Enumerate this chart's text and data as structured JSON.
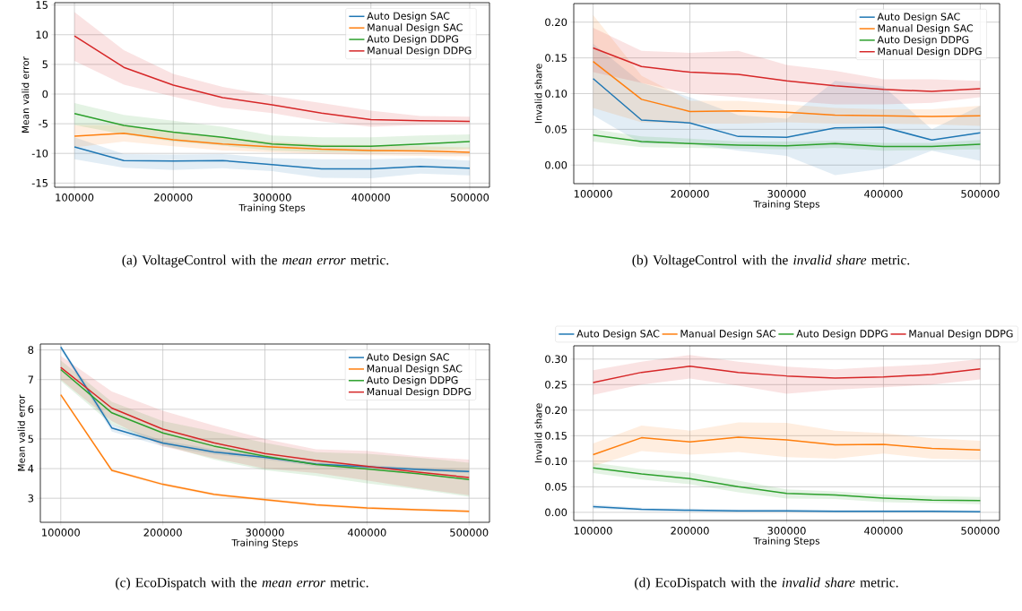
{
  "chart_data": [
    {
      "type": "line",
      "x": [
        100000,
        150000,
        200000,
        250000,
        300000,
        350000,
        400000,
        450000,
        500000
      ],
      "xlabel": "Training Steps",
      "ylabel": "Mean valid error",
      "xlim": [
        80000,
        520000
      ],
      "ylim": [
        -15.7,
        15.4
      ],
      "xticks": [
        100000,
        200000,
        300000,
        400000,
        500000
      ],
      "yticks": [
        -15,
        -10,
        -5,
        0,
        5,
        10,
        15
      ],
      "grid": true,
      "legend": "top right",
      "annotations": [
        "(a) VoltageControl with the *mean error* metric."
      ],
      "series": [
        {
          "name": "Auto Design SAC",
          "color": "#1f77b4",
          "values": [
            -8.9,
            -11.2,
            -11.3,
            -11.2,
            -11.9,
            -12.6,
            -12.6,
            -12.2,
            -12.5
          ],
          "upper": [
            -7.3,
            -10.1,
            -10.2,
            -10.1,
            -10.8,
            -11.0,
            -11.0,
            -10.8,
            -11.2
          ],
          "lower": [
            -11.0,
            -12.4,
            -12.8,
            -12.5,
            -13.0,
            -14.1,
            -14.2,
            -13.4,
            -13.7
          ]
        },
        {
          "name": "Manual Design SAC",
          "color": "#ff7f0e",
          "values": [
            -7.1,
            -6.6,
            -7.7,
            -8.4,
            -8.9,
            -9.3,
            -9.5,
            -9.6,
            -9.8
          ],
          "upper": [
            -5.2,
            -5.2,
            -6.5,
            -7.3,
            -8.0,
            -8.5,
            -8.6,
            -8.8,
            -9.0
          ],
          "lower": [
            -9.0,
            -8.0,
            -8.8,
            -9.5,
            -9.8,
            -10.1,
            -10.3,
            -10.4,
            -10.5
          ]
        },
        {
          "name": "Auto Design DDPG",
          "color": "#2ca02c",
          "values": [
            -3.3,
            -5.3,
            -6.4,
            -7.3,
            -8.4,
            -8.8,
            -8.8,
            -8.4,
            -8.0
          ],
          "upper": [
            -1.5,
            -3.5,
            -4.5,
            -5.5,
            -7.0,
            -7.3,
            -7.3,
            -7.0,
            -6.8
          ],
          "lower": [
            -5.2,
            -6.8,
            -8.0,
            -8.7,
            -9.5,
            -9.8,
            -9.8,
            -9.6,
            -9.2
          ]
        },
        {
          "name": "Manual Design DDPG",
          "color": "#d62728",
          "values": [
            9.8,
            4.5,
            1.5,
            -0.6,
            -1.8,
            -3.2,
            -4.3,
            -4.5,
            -4.6
          ],
          "upper": [
            13.8,
            7.4,
            3.4,
            1.2,
            -0.3,
            -1.5,
            -2.8,
            -3.7,
            -3.8
          ],
          "lower": [
            5.6,
            1.6,
            -0.4,
            -2.3,
            -3.2,
            -4.6,
            -5.5,
            -5.2,
            -5.1
          ]
        }
      ]
    },
    {
      "type": "line",
      "x": [
        100000,
        150000,
        200000,
        250000,
        300000,
        350000,
        400000,
        450000,
        500000
      ],
      "xlabel": "Training Steps",
      "ylabel": "Invalid share",
      "xlim": [
        80000,
        520000
      ],
      "ylim": [
        -0.026,
        0.226
      ],
      "xticks": [
        100000,
        200000,
        300000,
        400000,
        500000
      ],
      "yticks": [
        {
          "value": 0,
          "label": "0.00"
        },
        {
          "value": 0.05,
          "label": "0.05"
        },
        {
          "value": 0.1,
          "label": "0.10"
        },
        {
          "value": 0.15,
          "label": "0.15"
        },
        {
          "value": 0.2,
          "label": "0.20"
        }
      ],
      "grid": true,
      "legend": "top right",
      "annotations": [
        "(b) VoltageControl with the *invalid share* metric."
      ],
      "series": [
        {
          "name": "Auto Design SAC",
          "color": "#1f77b4",
          "values": [
            0.121,
            0.063,
            0.059,
            0.04,
            0.039,
            0.052,
            0.053,
            0.035,
            0.045
          ],
          "upper": [
            0.17,
            0.115,
            0.095,
            0.07,
            0.065,
            0.118,
            0.11,
            0.05,
            0.083
          ],
          "lower": [
            0.07,
            0.03,
            0.03,
            0.02,
            0.013,
            -0.014,
            -0.005,
            0.02,
            0.006
          ]
        },
        {
          "name": "Manual Design SAC",
          "color": "#ff7f0e",
          "values": [
            0.145,
            0.092,
            0.075,
            0.076,
            0.074,
            0.07,
            0.069,
            0.068,
            0.069
          ],
          "upper": [
            0.21,
            0.125,
            0.09,
            0.09,
            0.085,
            0.08,
            0.078,
            0.078,
            0.083
          ],
          "lower": [
            0.08,
            0.06,
            0.058,
            0.058,
            0.06,
            0.058,
            0.058,
            0.057,
            0.055
          ]
        },
        {
          "name": "Auto Design DDPG",
          "color": "#2ca02c",
          "values": [
            0.042,
            0.033,
            0.03,
            0.028,
            0.027,
            0.03,
            0.026,
            0.026,
            0.029
          ],
          "upper": [
            0.05,
            0.04,
            0.037,
            0.033,
            0.033,
            0.034,
            0.031,
            0.031,
            0.035
          ],
          "lower": [
            0.033,
            0.025,
            0.024,
            0.023,
            0.022,
            0.024,
            0.02,
            0.021,
            0.022
          ]
        },
        {
          "name": "Manual Design DDPG",
          "color": "#d62728",
          "values": [
            0.164,
            0.138,
            0.13,
            0.127,
            0.118,
            0.111,
            0.106,
            0.103,
            0.107
          ],
          "upper": [
            0.192,
            0.16,
            0.157,
            0.16,
            0.14,
            0.132,
            0.12,
            0.12,
            0.118
          ],
          "lower": [
            0.13,
            0.115,
            0.1,
            0.095,
            0.09,
            0.085,
            0.085,
            0.087,
            0.095
          ]
        }
      ]
    },
    {
      "type": "line",
      "x": [
        100000,
        150000,
        200000,
        250000,
        300000,
        350000,
        400000,
        450000,
        500000
      ],
      "xlabel": "Training Steps",
      "ylabel": "Mean valid error",
      "xlim": [
        80000,
        520000
      ],
      "ylim": [
        2.19,
        8.2
      ],
      "xticks": [
        100000,
        200000,
        300000,
        400000,
        500000
      ],
      "yticks": [
        3,
        4,
        5,
        6,
        7,
        8
      ],
      "grid": true,
      "legend": "top right",
      "annotations": [
        "(c) EcoDispatch with the *mean error* metric."
      ],
      "series": [
        {
          "name": "Auto Design SAC",
          "color": "#1f77b4",
          "values": [
            8.1,
            5.37,
            4.86,
            4.56,
            4.38,
            4.15,
            4.06,
            3.97,
            3.9
          ],
          "upper": [
            8.17,
            5.5,
            4.95,
            4.65,
            4.45,
            4.22,
            4.12,
            4.03,
            3.96
          ],
          "lower": [
            8.0,
            5.25,
            4.75,
            4.48,
            4.3,
            4.08,
            4.0,
            3.92,
            3.85
          ]
        },
        {
          "name": "Manual Design SAC",
          "color": "#ff7f0e",
          "values": [
            6.49,
            3.94,
            3.47,
            3.13,
            2.95,
            2.78,
            2.67,
            2.61,
            2.56
          ],
          "upper": [
            6.54,
            3.99,
            3.52,
            3.18,
            3.0,
            2.83,
            2.72,
            2.66,
            2.61
          ],
          "lower": [
            6.44,
            3.89,
            3.42,
            3.08,
            2.9,
            2.73,
            2.62,
            2.56,
            2.51
          ]
        },
        {
          "name": "Auto Design DDPG",
          "color": "#2ca02c",
          "values": [
            7.34,
            5.88,
            5.2,
            4.76,
            4.42,
            4.14,
            3.99,
            3.83,
            3.63
          ],
          "upper": [
            7.65,
            6.25,
            5.6,
            5.25,
            4.87,
            4.55,
            4.5,
            4.37,
            4.2
          ],
          "lower": [
            6.95,
            5.5,
            4.8,
            4.3,
            3.95,
            3.75,
            3.5,
            3.3,
            3.05
          ]
        },
        {
          "name": "Manual Design DDPG",
          "color": "#d62728",
          "values": [
            7.41,
            6.04,
            5.33,
            4.87,
            4.51,
            4.27,
            4.08,
            3.88,
            3.7
          ],
          "upper": [
            7.8,
            6.6,
            5.95,
            5.45,
            5.0,
            4.65,
            4.6,
            4.42,
            4.3
          ],
          "lower": [
            7.0,
            5.6,
            4.75,
            4.35,
            4.0,
            3.85,
            3.6,
            3.33,
            3.1
          ]
        }
      ]
    },
    {
      "type": "line",
      "x": [
        100000,
        150000,
        200000,
        250000,
        300000,
        350000,
        400000,
        450000,
        500000
      ],
      "xlabel": "Training Steps",
      "ylabel": "Invalid share",
      "xlim": [
        80000,
        520000
      ],
      "ylim": [
        -0.016,
        0.326
      ],
      "xticks": [
        100000,
        200000,
        300000,
        400000,
        500000
      ],
      "yticks": [
        {
          "value": 0,
          "label": "0.00"
        },
        {
          "value": 0.05,
          "label": "0.05"
        },
        {
          "value": 0.1,
          "label": "0.10"
        },
        {
          "value": 0.15,
          "label": "0.15"
        },
        {
          "value": 0.2,
          "label": "0.20"
        },
        {
          "value": 0.25,
          "label": "0.25"
        },
        {
          "value": 0.3,
          "label": "0.30"
        }
      ],
      "grid": true,
      "legend": "top",
      "annotations": [
        "(d) EcoDispatch with the *invalid share* metric."
      ],
      "series": [
        {
          "name": "Auto Design SAC",
          "color": "#1f77b4",
          "values": [
            0.011,
            0.006,
            0.004,
            0.003,
            0.003,
            0.002,
            0.002,
            0.002,
            0.001
          ],
          "upper": [
            0.015,
            0.009,
            0.007,
            0.006,
            0.006,
            0.005,
            0.005,
            0.005,
            0.004
          ],
          "lower": [
            0.007,
            0.003,
            0.001,
            0.0,
            0.0,
            0.0,
            0.0,
            0.0,
            0.0
          ]
        },
        {
          "name": "Manual Design SAC",
          "color": "#ff7f0e",
          "values": [
            0.113,
            0.146,
            0.138,
            0.147,
            0.142,
            0.132,
            0.133,
            0.125,
            0.122
          ],
          "upper": [
            0.135,
            0.17,
            0.16,
            0.176,
            0.175,
            0.16,
            0.155,
            0.145,
            0.14
          ],
          "lower": [
            0.09,
            0.12,
            0.113,
            0.118,
            0.108,
            0.105,
            0.115,
            0.105,
            0.103
          ]
        },
        {
          "name": "Auto Design DDPG",
          "color": "#2ca02c",
          "values": [
            0.087,
            0.075,
            0.066,
            0.05,
            0.037,
            0.034,
            0.028,
            0.024,
            0.023
          ],
          "upper": [
            0.097,
            0.085,
            0.078,
            0.062,
            0.045,
            0.041,
            0.035,
            0.032,
            0.03
          ],
          "lower": [
            0.077,
            0.064,
            0.055,
            0.039,
            0.027,
            0.026,
            0.02,
            0.018,
            0.016
          ]
        },
        {
          "name": "Manual Design DDPG",
          "color": "#d62728",
          "values": [
            0.254,
            0.274,
            0.286,
            0.274,
            0.267,
            0.263,
            0.265,
            0.27,
            0.281
          ],
          "upper": [
            0.278,
            0.295,
            0.308,
            0.295,
            0.285,
            0.28,
            0.285,
            0.29,
            0.3
          ],
          "lower": [
            0.23,
            0.25,
            0.262,
            0.248,
            0.232,
            0.24,
            0.245,
            0.25,
            0.26
          ]
        }
      ]
    }
  ]
}
